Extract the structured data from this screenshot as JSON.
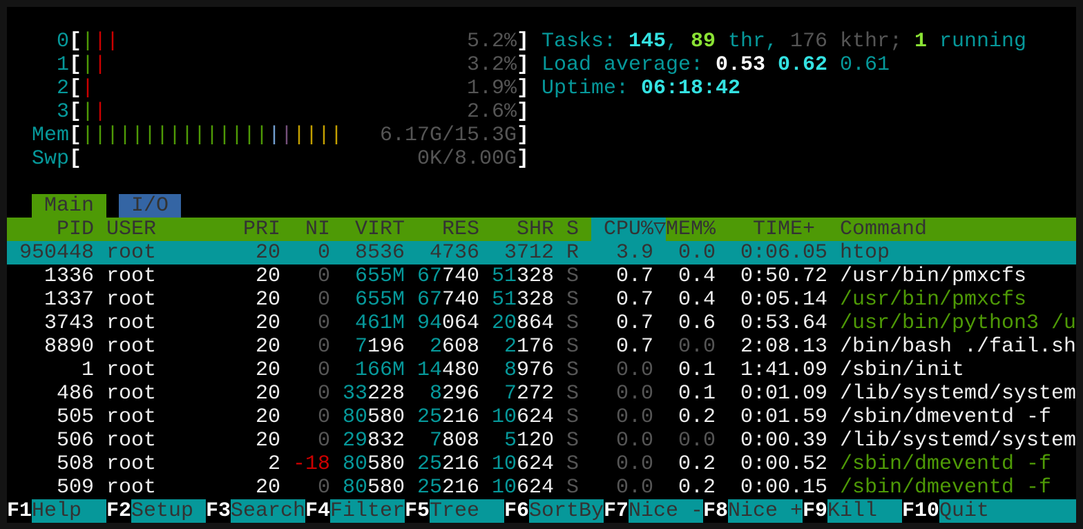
{
  "meters": {
    "cpus": [
      {
        "label": "0",
        "value": "5.2%",
        "bars": [
          {
            "color": "green",
            "count": 1
          },
          {
            "color": "red",
            "count": 2
          }
        ]
      },
      {
        "label": "1",
        "value": "3.2%",
        "bars": [
          {
            "color": "green",
            "count": 1
          },
          {
            "color": "red",
            "count": 1
          }
        ]
      },
      {
        "label": "2",
        "value": "1.9%",
        "bars": [
          {
            "color": "red",
            "count": 1
          }
        ]
      },
      {
        "label": "3",
        "value": "2.6%",
        "bars": [
          {
            "color": "green",
            "count": 1
          },
          {
            "color": "red",
            "count": 1
          }
        ]
      }
    ],
    "mem": {
      "label": "Mem",
      "value": "6.17G/15.3G",
      "bars": [
        {
          "color": "green",
          "count": 15
        },
        {
          "color": "blue",
          "count": 1
        },
        {
          "color": "purple",
          "count": 1
        },
        {
          "color": "yellow",
          "count": 4
        }
      ]
    },
    "swap": {
      "label": "Swp",
      "value": "0K/8.00G",
      "bars": []
    }
  },
  "summary": [
    [
      {
        "t": "Tasks: ",
        "c": "teal"
      },
      {
        "t": "145",
        "c": "cyanb"
      },
      {
        "t": ", ",
        "c": "teal"
      },
      {
        "t": "89",
        "c": "greenb"
      },
      {
        "t": " thr, ",
        "c": "teal"
      },
      {
        "t": "176",
        "c": "gray"
      },
      {
        "t": " kthr; ",
        "c": "gray"
      },
      {
        "t": "1",
        "c": "greenb"
      },
      {
        "t": " running",
        "c": "teal"
      }
    ],
    [
      {
        "t": "Load average: ",
        "c": "teal"
      },
      {
        "t": "0.53",
        "c": "whiteb"
      },
      {
        "t": " ",
        "c": "teal"
      },
      {
        "t": "0.62",
        "c": "cyanb"
      },
      {
        "t": " ",
        "c": "teal"
      },
      {
        "t": "0.61",
        "c": "teal"
      }
    ],
    [
      {
        "t": "Uptime: ",
        "c": "teal"
      },
      {
        "t": "06:18:42",
        "c": "cyanb"
      }
    ]
  ],
  "tabs": [
    {
      "label": "Main",
      "active": true
    },
    {
      "label": "I/O",
      "active": false
    }
  ],
  "columns": {
    "pid": "PID",
    "user": "USER",
    "pri": "PRI",
    "ni": "NI",
    "virt": "VIRT",
    "res": "RES",
    "shr": "SHR",
    "s": "S",
    "cpu": "CPU%",
    "sort_indicator": "▽",
    "mem": "MEM%",
    "time": "TIME+",
    "command": "Command"
  },
  "sort_column": "CPU%",
  "processes": [
    {
      "pid": "950448",
      "user": "root",
      "pri": "20",
      "ni": "0",
      "virt": "8536",
      "res": "4736",
      "shr": "3712",
      "s": "R",
      "cpu": "3.9",
      "mem": "0.0",
      "time": "0:06.05",
      "command": "htop",
      "selected": true
    },
    {
      "pid": "1336",
      "user": "root",
      "pri": "20",
      "ni": "0",
      "virt": "655M",
      "res": "67740",
      "shr": "51328",
      "s": "S",
      "cpu": "0.7",
      "mem": "0.4",
      "time": "0:50.72",
      "command": "/usr/bin/pmxcfs"
    },
    {
      "pid": "1337",
      "user": "root",
      "pri": "20",
      "ni": "0",
      "virt": "655M",
      "res": "67740",
      "shr": "51328",
      "s": "S",
      "cpu": "0.7",
      "mem": "0.4",
      "time": "0:05.14",
      "command": "/usr/bin/pmxcfs",
      "thread": true
    },
    {
      "pid": "3743",
      "user": "root",
      "pri": "20",
      "ni": "0",
      "virt": "461M",
      "res": "94064",
      "shr": "20864",
      "s": "S",
      "cpu": "0.7",
      "mem": "0.6",
      "time": "0:53.64",
      "command": "/usr/bin/python3 /u",
      "thread": true
    },
    {
      "pid": "8890",
      "user": "root",
      "pri": "20",
      "ni": "0",
      "virt": "7196",
      "res": "2608",
      "shr": "2176",
      "s": "S",
      "cpu": "0.7",
      "mem": "0.0",
      "time": "2:08.13",
      "command": "/bin/bash ./fail.sh"
    },
    {
      "pid": "1",
      "user": "root",
      "pri": "20",
      "ni": "0",
      "virt": "166M",
      "res": "14480",
      "shr": "8976",
      "s": "S",
      "cpu": "0.0",
      "mem": "0.1",
      "time": "1:41.09",
      "command": "/sbin/init"
    },
    {
      "pid": "486",
      "user": "root",
      "pri": "20",
      "ni": "0",
      "virt": "33228",
      "res": "8296",
      "shr": "7272",
      "s": "S",
      "cpu": "0.0",
      "mem": "0.1",
      "time": "0:01.09",
      "command": "/lib/systemd/system"
    },
    {
      "pid": "505",
      "user": "root",
      "pri": "20",
      "ni": "0",
      "virt": "80580",
      "res": "25216",
      "shr": "10624",
      "s": "S",
      "cpu": "0.0",
      "mem": "0.2",
      "time": "0:01.59",
      "command": "/sbin/dmeventd -f"
    },
    {
      "pid": "506",
      "user": "root",
      "pri": "20",
      "ni": "0",
      "virt": "29832",
      "res": "7808",
      "shr": "5120",
      "s": "S",
      "cpu": "0.0",
      "mem": "0.0",
      "time": "0:00.39",
      "command": "/lib/systemd/system"
    },
    {
      "pid": "508",
      "user": "root",
      "pri": "2",
      "ni": "-18",
      "virt": "80580",
      "res": "25216",
      "shr": "10624",
      "s": "S",
      "cpu": "0.0",
      "mem": "0.2",
      "time": "0:00.52",
      "command": "/sbin/dmeventd -f",
      "thread": true
    },
    {
      "pid": "509",
      "user": "root",
      "pri": "20",
      "ni": "0",
      "virt": "80580",
      "res": "25216",
      "shr": "10624",
      "s": "S",
      "cpu": "0.0",
      "mem": "0.2",
      "time": "0:00.15",
      "command": "/sbin/dmeventd -f",
      "thread": true
    }
  ],
  "function_keys": [
    {
      "key": "F1",
      "label": "Help"
    },
    {
      "key": "F2",
      "label": "Setup"
    },
    {
      "key": "F3",
      "label": "Search"
    },
    {
      "key": "F4",
      "label": "Filter"
    },
    {
      "key": "F5",
      "label": "Tree"
    },
    {
      "key": "F6",
      "label": "SortBy"
    },
    {
      "key": "F7",
      "label": "Nice -"
    },
    {
      "key": "F8",
      "label": "Nice +"
    },
    {
      "key": "F9",
      "label": "Kill"
    },
    {
      "key": "F10",
      "label": "Quit"
    }
  ],
  "colors": {
    "header": "#4e9a06",
    "selection": "#06989a",
    "tab_inactive": "#3465a4",
    "accent": "#06989a",
    "error": "#cc0000"
  }
}
